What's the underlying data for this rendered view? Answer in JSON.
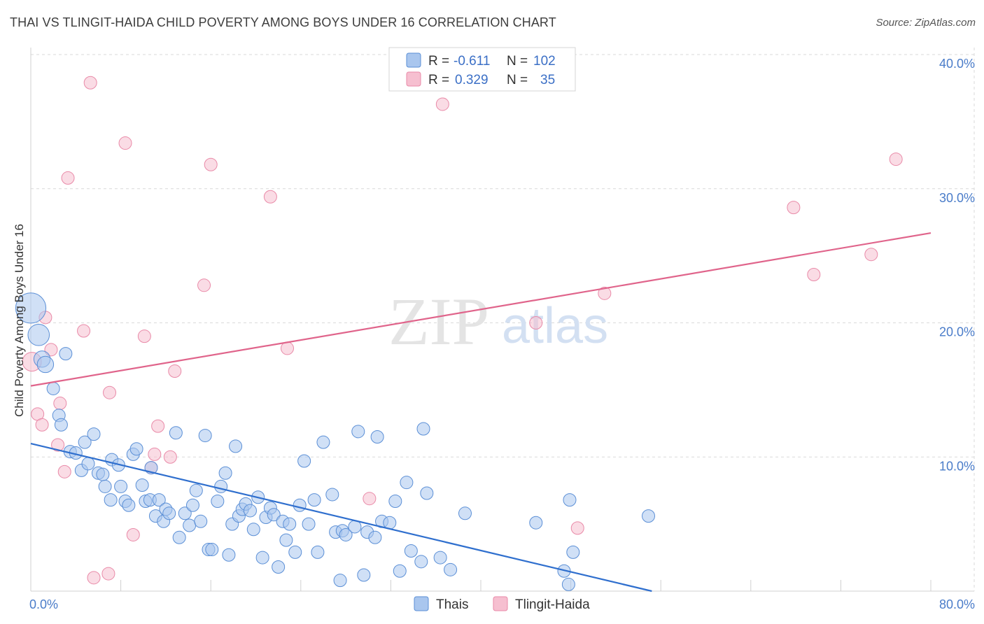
{
  "title": "THAI VS TLINGIT-HAIDA CHILD POVERTY AMONG BOYS UNDER 16 CORRELATION CHART",
  "source": "Source: ZipAtlas.com",
  "watermark": {
    "zip": "ZIP",
    "atlas": "atlas"
  },
  "colors": {
    "thai_fill": "#a9c6ee",
    "thai_stroke": "#5b8fd6",
    "thai_line": "#2f6fce",
    "tlingit_fill": "#f6bfd0",
    "tlingit_stroke": "#e98aa8",
    "tlingit_line": "#e0648b",
    "grid": "#d9d9d9",
    "tick_label": "#4a7cc9"
  },
  "legend": {
    "rows": [
      {
        "r_label": "R =",
        "r_value": "-0.611",
        "n_label": "N =",
        "n_value": "102"
      },
      {
        "r_label": "R =",
        "r_value": "0.329",
        "n_label": "N =",
        "n_value": "35"
      }
    ]
  },
  "chart_data": {
    "type": "scatter",
    "title": "THAI VS TLINGIT-HAIDA CHILD POVERTY AMONG BOYS UNDER 16 CORRELATION CHART",
    "xlabel": "",
    "ylabel": "Child Poverty Among Boys Under 16",
    "xlim": [
      0,
      80
    ],
    "ylim": [
      0,
      40
    ],
    "x_tick_labels": [
      "0.0%",
      "80.0%"
    ],
    "y_ticks": [
      10,
      20,
      30,
      40
    ],
    "y_tick_labels": [
      "10.0%",
      "20.0%",
      "30.0%",
      "40.0%"
    ],
    "grid": true,
    "legend_position": "bottom-center",
    "series": [
      {
        "name": "Thais",
        "r": -0.611,
        "n": 102,
        "trend": {
          "x": [
            0,
            55.2
          ],
          "y": [
            11.0,
            0
          ]
        },
        "points": [
          {
            "x": 0,
            "y": 21.1,
            "s": 2.4
          },
          {
            "x": 0.7,
            "y": 19.1,
            "s": 1.7
          },
          {
            "x": 1.0,
            "y": 17.3,
            "s": 1.3
          },
          {
            "x": 1.3,
            "y": 16.9,
            "s": 1.3
          },
          {
            "x": 3.1,
            "y": 17.7
          },
          {
            "x": 2.0,
            "y": 15.1
          },
          {
            "x": 2.5,
            "y": 13.1
          },
          {
            "x": 2.7,
            "y": 12.4
          },
          {
            "x": 4.8,
            "y": 11.1
          },
          {
            "x": 5.6,
            "y": 11.7
          },
          {
            "x": 3.5,
            "y": 10.4
          },
          {
            "x": 4.0,
            "y": 10.3
          },
          {
            "x": 4.5,
            "y": 9.0
          },
          {
            "x": 5.1,
            "y": 9.5
          },
          {
            "x": 6.0,
            "y": 8.8
          },
          {
            "x": 6.4,
            "y": 8.7
          },
          {
            "x": 6.6,
            "y": 7.8
          },
          {
            "x": 7.2,
            "y": 9.8
          },
          {
            "x": 7.8,
            "y": 9.4
          },
          {
            "x": 7.1,
            "y": 6.8
          },
          {
            "x": 8.0,
            "y": 7.8
          },
          {
            "x": 8.4,
            "y": 6.7
          },
          {
            "x": 8.7,
            "y": 6.4
          },
          {
            "x": 9.1,
            "y": 10.2
          },
          {
            "x": 9.4,
            "y": 10.6
          },
          {
            "x": 9.9,
            "y": 7.9
          },
          {
            "x": 10.2,
            "y": 6.7
          },
          {
            "x": 10.6,
            "y": 6.8
          },
          {
            "x": 10.7,
            "y": 9.2
          },
          {
            "x": 11.1,
            "y": 5.6
          },
          {
            "x": 11.4,
            "y": 6.8
          },
          {
            "x": 11.8,
            "y": 5.2
          },
          {
            "x": 12.0,
            "y": 6.1
          },
          {
            "x": 12.3,
            "y": 5.8
          },
          {
            "x": 12.9,
            "y": 11.8
          },
          {
            "x": 13.2,
            "y": 4.0
          },
          {
            "x": 13.7,
            "y": 5.8
          },
          {
            "x": 14.1,
            "y": 4.9
          },
          {
            "x": 14.4,
            "y": 6.4
          },
          {
            "x": 14.7,
            "y": 7.5
          },
          {
            "x": 15.1,
            "y": 5.2
          },
          {
            "x": 15.5,
            "y": 11.6
          },
          {
            "x": 15.8,
            "y": 3.1
          },
          {
            "x": 16.1,
            "y": 3.1
          },
          {
            "x": 16.6,
            "y": 6.7
          },
          {
            "x": 16.9,
            "y": 7.8
          },
          {
            "x": 17.3,
            "y": 8.8
          },
          {
            "x": 17.6,
            "y": 2.7
          },
          {
            "x": 17.9,
            "y": 5.0
          },
          {
            "x": 18.2,
            "y": 10.8
          },
          {
            "x": 18.5,
            "y": 5.6
          },
          {
            "x": 18.8,
            "y": 6.1
          },
          {
            "x": 19.1,
            "y": 6.5
          },
          {
            "x": 19.5,
            "y": 6.0
          },
          {
            "x": 19.8,
            "y": 4.6
          },
          {
            "x": 20.2,
            "y": 7.0
          },
          {
            "x": 20.6,
            "y": 2.5
          },
          {
            "x": 20.9,
            "y": 5.5
          },
          {
            "x": 21.3,
            "y": 6.2
          },
          {
            "x": 21.6,
            "y": 5.7
          },
          {
            "x": 22.0,
            "y": 1.8
          },
          {
            "x": 22.4,
            "y": 5.2
          },
          {
            "x": 22.7,
            "y": 3.8
          },
          {
            "x": 23.0,
            "y": 5.0
          },
          {
            "x": 23.5,
            "y": 2.9
          },
          {
            "x": 23.9,
            "y": 6.4
          },
          {
            "x": 24.3,
            "y": 9.7
          },
          {
            "x": 24.7,
            "y": 5.0
          },
          {
            "x": 25.2,
            "y": 6.8
          },
          {
            "x": 25.5,
            "y": 2.9
          },
          {
            "x": 26.0,
            "y": 11.1
          },
          {
            "x": 26.8,
            "y": 7.2
          },
          {
            "x": 27.1,
            "y": 4.4
          },
          {
            "x": 27.5,
            "y": 0.8
          },
          {
            "x": 27.7,
            "y": 4.5
          },
          {
            "x": 28.0,
            "y": 4.2
          },
          {
            "x": 28.8,
            "y": 4.8
          },
          {
            "x": 29.1,
            "y": 11.9
          },
          {
            "x": 29.6,
            "y": 1.2
          },
          {
            "x": 29.9,
            "y": 4.4
          },
          {
            "x": 30.6,
            "y": 4.0
          },
          {
            "x": 30.8,
            "y": 11.5
          },
          {
            "x": 31.2,
            "y": 5.2
          },
          {
            "x": 31.9,
            "y": 5.1
          },
          {
            "x": 32.4,
            "y": 6.7
          },
          {
            "x": 32.8,
            "y": 1.5
          },
          {
            "x": 33.4,
            "y": 8.1
          },
          {
            "x": 33.8,
            "y": 3.0
          },
          {
            "x": 34.7,
            "y": 2.2
          },
          {
            "x": 34.9,
            "y": 12.1
          },
          {
            "x": 35.2,
            "y": 7.3
          },
          {
            "x": 36.4,
            "y": 2.5
          },
          {
            "x": 37.3,
            "y": 1.6
          },
          {
            "x": 38.6,
            "y": 5.8
          },
          {
            "x": 44.9,
            "y": 5.1
          },
          {
            "x": 47.4,
            "y": 1.5
          },
          {
            "x": 47.8,
            "y": 0.5
          },
          {
            "x": 47.9,
            "y": 6.8
          },
          {
            "x": 48.2,
            "y": 2.9
          },
          {
            "x": 54.9,
            "y": 5.6
          }
        ]
      },
      {
        "name": "Tlingit-Haida",
        "r": 0.329,
        "n": 35,
        "trend": {
          "x": [
            0,
            80
          ],
          "y": [
            15.3,
            26.7
          ]
        },
        "points": [
          {
            "x": 0.1,
            "y": 17.1,
            "s": 1.5
          },
          {
            "x": 0.6,
            "y": 13.2
          },
          {
            "x": 1.0,
            "y": 12.4
          },
          {
            "x": 1.3,
            "y": 20.4
          },
          {
            "x": 1.8,
            "y": 18.0
          },
          {
            "x": 2.4,
            "y": 10.9
          },
          {
            "x": 2.6,
            "y": 14.0
          },
          {
            "x": 3.0,
            "y": 8.9
          },
          {
            "x": 3.3,
            "y": 30.8
          },
          {
            "x": 4.7,
            "y": 19.4
          },
          {
            "x": 5.3,
            "y": 37.9
          },
          {
            "x": 5.6,
            "y": 1.0
          },
          {
            "x": 6.9,
            "y": 1.3
          },
          {
            "x": 7.0,
            "y": 14.8
          },
          {
            "x": 8.4,
            "y": 33.4
          },
          {
            "x": 9.1,
            "y": 4.2
          },
          {
            "x": 10.1,
            "y": 19.0
          },
          {
            "x": 10.7,
            "y": 9.2
          },
          {
            "x": 11.0,
            "y": 10.2
          },
          {
            "x": 11.3,
            "y": 12.3
          },
          {
            "x": 12.4,
            "y": 10.0
          },
          {
            "x": 12.8,
            "y": 16.4
          },
          {
            "x": 15.4,
            "y": 22.8
          },
          {
            "x": 16.0,
            "y": 31.8
          },
          {
            "x": 21.3,
            "y": 29.4
          },
          {
            "x": 22.8,
            "y": 18.1
          },
          {
            "x": 30.1,
            "y": 6.9
          },
          {
            "x": 36.6,
            "y": 36.3
          },
          {
            "x": 44.9,
            "y": 20.0
          },
          {
            "x": 48.6,
            "y": 4.7
          },
          {
            "x": 51.0,
            "y": 22.2
          },
          {
            "x": 67.8,
            "y": 28.6
          },
          {
            "x": 69.6,
            "y": 23.6
          },
          {
            "x": 74.7,
            "y": 25.1
          },
          {
            "x": 76.9,
            "y": 32.2
          }
        ]
      }
    ]
  }
}
